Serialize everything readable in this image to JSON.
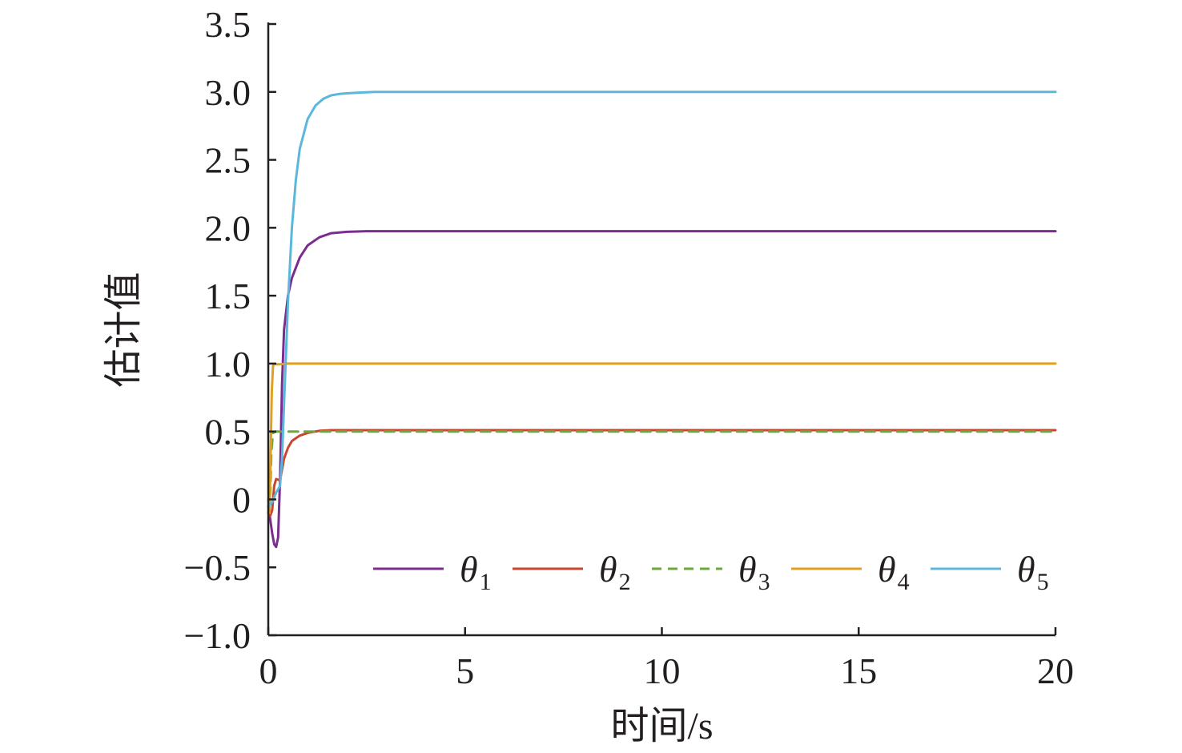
{
  "chart_data": {
    "type": "line",
    "title": "",
    "xlabel": "时间/s",
    "ylabel": "估计值",
    "xlim": [
      0,
      20
    ],
    "ylim": [
      -1.0,
      3.5
    ],
    "xticks": [
      0,
      5,
      10,
      15,
      20
    ],
    "xtick_labels": [
      "0",
      "5",
      "10",
      "15",
      "20"
    ],
    "yticks": [
      -1.0,
      -0.5,
      0,
      0.5,
      1.0,
      1.5,
      2.0,
      2.5,
      3.0,
      3.5
    ],
    "ytick_labels": [
      "−1.0",
      "−0.5",
      "0",
      "0.5",
      "1.0",
      "1.5",
      "2.0",
      "2.5",
      "3.0",
      "3.5"
    ],
    "grid": false,
    "legend_position": "bottom-right",
    "series": [
      {
        "name": "θ1",
        "symbol": "θ",
        "subscript": "1",
        "color": "#7b2d8e",
        "dash": "solid",
        "x": [
          0,
          0.05,
          0.1,
          0.15,
          0.2,
          0.25,
          0.3,
          0.35,
          0.4,
          0.5,
          0.6,
          0.8,
          1.0,
          1.3,
          1.6,
          2.0,
          2.5,
          3,
          4,
          6,
          10,
          15,
          20
        ],
        "y": [
          -0.05,
          -0.15,
          -0.25,
          -0.33,
          -0.35,
          -0.28,
          0.15,
          0.85,
          1.25,
          1.5,
          1.63,
          1.78,
          1.87,
          1.93,
          1.96,
          1.97,
          1.975,
          1.975,
          1.975,
          1.975,
          1.975,
          1.975,
          1.975
        ]
      },
      {
        "name": "θ2",
        "symbol": "θ",
        "subscript": "2",
        "color": "#c8462f",
        "dash": "solid",
        "x": [
          0,
          0.05,
          0.1,
          0.15,
          0.2,
          0.3,
          0.35,
          0.4,
          0.5,
          0.6,
          0.8,
          1.0,
          1.3,
          1.6,
          2.0,
          3,
          5,
          10,
          15,
          20
        ],
        "y": [
          0.0,
          -0.12,
          -0.08,
          0.1,
          0.15,
          0.14,
          0.22,
          0.3,
          0.38,
          0.43,
          0.47,
          0.49,
          0.505,
          0.51,
          0.51,
          0.51,
          0.51,
          0.51,
          0.51,
          0.51
        ]
      },
      {
        "name": "θ3",
        "symbol": "θ",
        "subscript": "3",
        "color": "#6aaa3a",
        "dash": "dashed",
        "x": [
          0,
          0.05,
          0.08,
          0.12,
          0.2,
          0.5,
          1,
          5,
          10,
          15,
          20
        ],
        "y": [
          -0.1,
          0.05,
          0.35,
          0.49,
          0.5,
          0.5,
          0.5,
          0.5,
          0.5,
          0.5,
          0.5
        ]
      },
      {
        "name": "θ4",
        "symbol": "θ",
        "subscript": "4",
        "color": "#e0a020",
        "dash": "solid",
        "x": [
          0,
          0.03,
          0.06,
          0.09,
          0.12,
          0.15,
          0.2,
          0.3,
          0.5,
          1,
          5,
          10,
          15,
          20
        ],
        "y": [
          0.0,
          -0.1,
          0.3,
          0.8,
          0.98,
          1.0,
          0.995,
          0.995,
          1.0,
          1.0,
          1.0,
          1.0,
          1.0,
          1.0
        ]
      },
      {
        "name": "θ5",
        "symbol": "θ",
        "subscript": "5",
        "color": "#5bb8dc",
        "dash": "solid",
        "x": [
          0,
          0.1,
          0.2,
          0.3,
          0.35,
          0.4,
          0.5,
          0.6,
          0.7,
          0.8,
          1.0,
          1.2,
          1.4,
          1.6,
          1.8,
          2.0,
          2.3,
          2.7,
          3.2,
          4,
          6,
          10,
          15,
          20
        ],
        "y": [
          -0.05,
          -0.02,
          0.05,
          0.1,
          0.3,
          0.7,
          1.45,
          2.0,
          2.35,
          2.58,
          2.8,
          2.9,
          2.95,
          2.975,
          2.985,
          2.99,
          2.995,
          3.0,
          3.0,
          3.0,
          3.0,
          3.0,
          3.0,
          3.0
        ]
      }
    ]
  }
}
